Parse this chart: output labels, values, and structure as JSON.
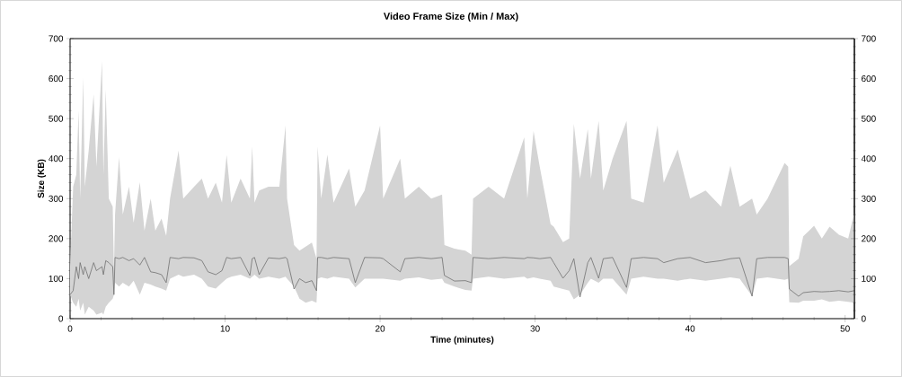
{
  "chart_data": {
    "type": "line",
    "title": "Video Frame Size (Min / Max)",
    "xlabel": "Time (minutes)",
    "ylabel": "Size (KB)",
    "xlim": [
      0,
      50.6
    ],
    "xticks": [
      0,
      10,
      20,
      30,
      40,
      50
    ],
    "ylim": [
      0,
      700
    ],
    "yticks": [
      0,
      100,
      200,
      300,
      400,
      500,
      600,
      700
    ],
    "y2lim": [
      0,
      700
    ],
    "y2ticks": [
      0,
      100,
      200,
      300,
      400,
      500,
      600,
      700
    ],
    "grid": false,
    "series": [
      {
        "color": "#707070",
        "x": [
          0.0,
          0.2,
          0.4,
          0.55,
          0.65,
          0.85,
          0.95,
          1.2,
          1.52,
          1.7,
          2.06,
          2.15,
          2.3,
          2.5,
          2.75,
          2.83,
          2.9,
          3.16,
          3.4,
          3.8,
          4.1,
          4.5,
          4.8,
          5.2,
          5.5,
          5.9,
          6.2,
          6.45,
          7.0,
          7.3,
          8.0,
          8.5,
          8.9,
          9.4,
          9.8,
          10.1,
          10.4,
          11.0,
          11.6,
          11.75,
          11.9,
          12.2,
          12.8,
          13.5,
          13.9,
          14.0,
          14.45,
          14.8,
          15.2,
          15.6,
          15.9,
          15.97,
          16.2,
          16.6,
          17.0,
          18.0,
          18.4,
          19.0,
          20.0,
          20.2,
          21.3,
          21.6,
          22.5,
          23.3,
          24.0,
          24.15,
          24.8,
          25.5,
          25.9,
          26.0,
          27.0,
          28.0,
          29.3,
          29.5,
          29.9,
          30.3,
          31.0,
          31.2,
          31.8,
          32.2,
          32.5,
          32.9,
          33.4,
          33.6,
          34.1,
          34.4,
          35.0,
          35.9,
          36.2,
          37.0,
          37.9,
          38.3,
          39.2,
          40.0,
          41.0,
          42.0,
          42.6,
          43.2,
          44.0,
          44.3,
          45.0,
          46.1,
          46.33,
          46.4,
          47.0,
          47.3,
          48.0,
          48.5,
          49.0,
          49.6,
          50.2,
          50.6
        ],
        "upper": [
          130,
          330,
          360,
          520,
          300,
          603,
          330,
          420,
          561,
          380,
          644,
          360,
          573,
          300,
          280,
          120,
          260,
          404,
          260,
          330,
          240,
          341,
          220,
          300,
          220,
          250,
          207,
          300,
          420,
          300,
          330,
          350,
          300,
          340,
          290,
          409,
          290,
          350,
          300,
          431,
          290,
          320,
          330,
          330,
          483,
          300,
          184,
          170,
          180,
          190,
          150,
          431,
          300,
          410,
          290,
          375,
          280,
          320,
          483,
          300,
          400,
          300,
          330,
          300,
          310,
          184,
          175,
          170,
          160,
          300,
          330,
          300,
          453,
          300,
          469,
          380,
          236,
          230,
          191,
          200,
          487,
          350,
          474,
          350,
          494,
          320,
          400,
          494,
          300,
          290,
          483,
          340,
          423,
          300,
          320,
          280,
          382,
          280,
          300,
          260,
          300,
          389,
          380,
          131,
          150,
          206,
          232,
          200,
          230,
          210,
          200,
          266
        ],
        "lower": [
          60,
          40,
          30,
          50,
          20,
          40,
          10,
          30,
          20,
          10,
          15,
          10,
          30,
          40,
          50,
          60,
          90,
          80,
          90,
          80,
          95,
          60,
          90,
          85,
          80,
          75,
          70,
          100,
          110,
          105,
          110,
          100,
          80,
          75,
          90,
          100,
          105,
          110,
          100,
          105,
          110,
          100,
          105,
          100,
          105,
          100,
          80,
          50,
          40,
          45,
          40,
          100,
          103,
          100,
          105,
          100,
          78,
          100,
          100,
          100,
          95,
          100,
          103,
          97,
          100,
          90,
          80,
          72,
          70,
          100,
          105,
          100,
          105,
          100,
          103,
          100,
          95,
          80,
          74,
          70,
          48,
          60,
          90,
          100,
          90,
          100,
          100,
          60,
          100,
          105,
          100,
          100,
          95,
          100,
          95,
          100,
          103,
          100,
          56,
          100,
          103,
          97,
          100,
          41,
          40,
          45,
          45,
          48,
          42,
          45,
          42,
          40
        ],
        "values": [
          60,
          70,
          130,
          100,
          140,
          110,
          130,
          100,
          140,
          120,
          130,
          110,
          145,
          140,
          130,
          60,
          153,
          150,
          153,
          145,
          150,
          134,
          153,
          117,
          115,
          110,
          90,
          153,
          150,
          153,
          152,
          145,
          117,
          110,
          120,
          153,
          150,
          153,
          108,
          150,
          153,
          110,
          152,
          150,
          153,
          150,
          74,
          100,
          90,
          95,
          70,
          153,
          153,
          150,
          153,
          150,
          90,
          153,
          152,
          150,
          117,
          150,
          153,
          150,
          153,
          108,
          94,
          95,
          90,
          153,
          150,
          153,
          150,
          153,
          152,
          150,
          153,
          140,
          101,
          120,
          150,
          54,
          140,
          153,
          101,
          150,
          153,
          78,
          150,
          153,
          150,
          140,
          150,
          153,
          140,
          145,
          150,
          152,
          56,
          150,
          153,
          153,
          150,
          74,
          56,
          65,
          68,
          67,
          68,
          70,
          67,
          70
        ]
      }
    ]
  }
}
